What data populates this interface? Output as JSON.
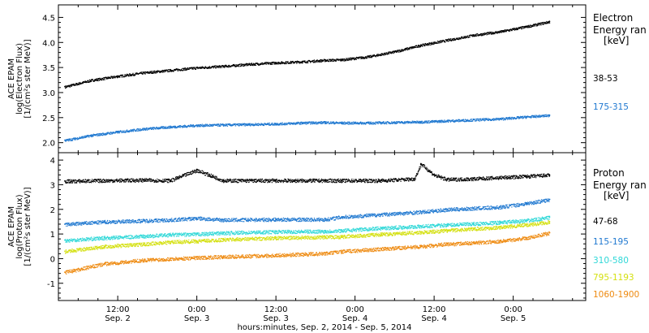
{
  "x_axis": {
    "title": "hours:minutes, Sep.  2, 2014 - Sep.  5, 2014",
    "tick_labels": [
      {
        "time": "12:00",
        "date": "Sep. 2",
        "hour": 12
      },
      {
        "time": "0:00",
        "date": "Sep. 3",
        "hour": 24
      },
      {
        "time": "12:00",
        "date": "Sep. 3",
        "hour": 36
      },
      {
        "time": "0:00",
        "date": "Sep. 4",
        "hour": 48
      },
      {
        "time": "12:00",
        "date": "Sep. 4",
        "hour": 60
      },
      {
        "time": "0:00",
        "date": "Sep. 5",
        "hour": 72
      }
    ]
  },
  "chart_data": [
    {
      "type": "scatter",
      "ylabel": [
        "ACE EPAM",
        "log(Electron Flux)",
        "[1/(cm²s ster MeV)]"
      ],
      "ylim": [
        1.8,
        4.75
      ],
      "yticks": [
        2.0,
        2.5,
        3.0,
        3.5,
        4.0,
        4.5
      ],
      "ytick_labels": [
        "2.0",
        "2.5",
        "3.0",
        "3.5",
        "4.0",
        "4.5"
      ],
      "xlim_hours": [
        3,
        83
      ],
      "legend": {
        "title": [
          "Electron",
          "Energy ran",
          "[keV]"
        ]
      },
      "series": [
        {
          "name": "38-53",
          "color": "#000000",
          "x": [
            4,
            8,
            12,
            16,
            20,
            24,
            28,
            32,
            36,
            40,
            43.5,
            46,
            50,
            54,
            58,
            62,
            66,
            70,
            74,
            77.5
          ],
          "y": [
            3.12,
            3.25,
            3.33,
            3.4,
            3.45,
            3.5,
            3.53,
            3.57,
            3.6,
            3.62,
            3.65,
            3.66,
            3.72,
            3.82,
            3.95,
            4.05,
            4.15,
            4.22,
            4.32,
            4.42
          ]
        },
        {
          "name": "175-315",
          "color": "#1f78d0",
          "x": [
            4,
            8,
            12,
            16,
            20,
            24,
            28,
            32,
            36,
            40,
            43.5,
            46,
            50,
            54,
            58,
            62,
            66,
            70,
            74,
            77.5
          ],
          "y": [
            2.05,
            2.15,
            2.22,
            2.28,
            2.32,
            2.35,
            2.36,
            2.37,
            2.38,
            2.4,
            2.41,
            2.4,
            2.4,
            2.41,
            2.42,
            2.44,
            2.46,
            2.48,
            2.52,
            2.55
          ]
        }
      ]
    },
    {
      "type": "scatter",
      "ylabel": [
        "ACE EPAM",
        "log(Proton Flux)",
        "[1/(cm²s ster MeV)]"
      ],
      "ylim": [
        -1.7,
        4.3
      ],
      "yticks": [
        -1,
        0,
        1,
        2,
        3,
        4
      ],
      "ytick_labels": [
        "-1",
        "0",
        "1",
        "2",
        "3",
        "4"
      ],
      "xlim_hours": [
        3,
        83
      ],
      "legend": {
        "title": [
          "Proton",
          "Energy ran",
          "[keV]"
        ]
      },
      "series": [
        {
          "name": "47-68",
          "color": "#000000",
          "x": [
            4,
            10,
            16,
            20,
            24,
            28,
            36,
            43.5,
            46,
            52,
            57,
            58,
            60,
            62,
            66,
            70,
            74,
            77.5
          ],
          "y": [
            3.15,
            3.18,
            3.2,
            3.18,
            3.6,
            3.18,
            3.18,
            3.18,
            3.18,
            3.18,
            3.25,
            3.85,
            3.4,
            3.22,
            3.25,
            3.3,
            3.35,
            3.4
          ]
        },
        {
          "name": "115-195",
          "color": "#1f78d0",
          "x": [
            4,
            10,
            16,
            20,
            24,
            28,
            36,
            43.5,
            46,
            52,
            58,
            62,
            66,
            70,
            74,
            77.5
          ],
          "y": [
            1.4,
            1.5,
            1.55,
            1.58,
            1.65,
            1.58,
            1.6,
            1.6,
            1.7,
            1.8,
            1.9,
            2.0,
            2.05,
            2.1,
            2.25,
            2.4
          ]
        },
        {
          "name": "310-580",
          "color": "#30d8d8",
          "x": [
            4,
            10,
            16,
            20,
            24,
            28,
            36,
            43.5,
            46,
            52,
            58,
            62,
            66,
            70,
            74,
            77.5
          ],
          "y": [
            0.75,
            0.85,
            0.92,
            0.98,
            1.0,
            1.05,
            1.1,
            1.12,
            1.15,
            1.25,
            1.32,
            1.38,
            1.42,
            1.48,
            1.55,
            1.68
          ]
        },
        {
          "name": "795-1193",
          "color": "#d4e010",
          "x": [
            4,
            10,
            16,
            20,
            24,
            28,
            36,
            43.5,
            46,
            52,
            58,
            62,
            66,
            70,
            74,
            77.5
          ],
          "y": [
            0.3,
            0.5,
            0.6,
            0.68,
            0.72,
            0.78,
            0.85,
            0.88,
            0.9,
            1.0,
            1.08,
            1.15,
            1.22,
            1.28,
            1.38,
            1.5
          ]
        },
        {
          "name": "1060-1900",
          "color": "#ee8a10",
          "x": [
            4,
            10,
            16,
            20,
            24,
            28,
            36,
            43.5,
            46,
            52,
            58,
            62,
            66,
            70,
            74,
            77.5
          ],
          "y": [
            -0.55,
            -0.2,
            -0.05,
            0.0,
            0.05,
            0.08,
            0.15,
            0.22,
            0.3,
            0.4,
            0.5,
            0.6,
            0.65,
            0.72,
            0.85,
            1.05
          ]
        }
      ]
    }
  ]
}
